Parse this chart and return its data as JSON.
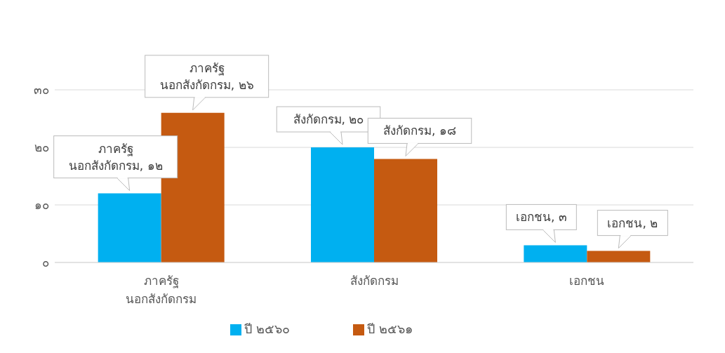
{
  "chart_data": {
    "type": "bar",
    "categories": [
      "ภาครัฐ\nนอกสังกัดกรม",
      "สังกัดกรม",
      "เอกชน"
    ],
    "series": [
      {
        "name": "ปี ๒๕๖๐",
        "color": "#00b0f0",
        "values": [
          12,
          20,
          3
        ],
        "value_labels": [
          "ภาครัฐ\nนอกสังกัดกรม, ๑๒",
          "สังกัดกรม, ๒๐",
          "เอกชน, ๓"
        ]
      },
      {
        "name": "ปี ๒๕๖๑",
        "color": "#c55a11",
        "values": [
          26,
          18,
          2
        ],
        "value_labels": [
          "ภาครัฐ\nนอกสังกัดกรม, ๒๖",
          "สังกัดกรม, ๑๘",
          "เอกชน, ๒"
        ]
      }
    ],
    "ylim": [
      0,
      30
    ],
    "yticks": [
      {
        "value": 0,
        "label": "๐"
      },
      {
        "value": 10,
        "label": "๑๐"
      },
      {
        "value": 20,
        "label": "๒๐"
      },
      {
        "value": 30,
        "label": "๓๐"
      }
    ],
    "grid": "y",
    "legend": "bottom"
  }
}
